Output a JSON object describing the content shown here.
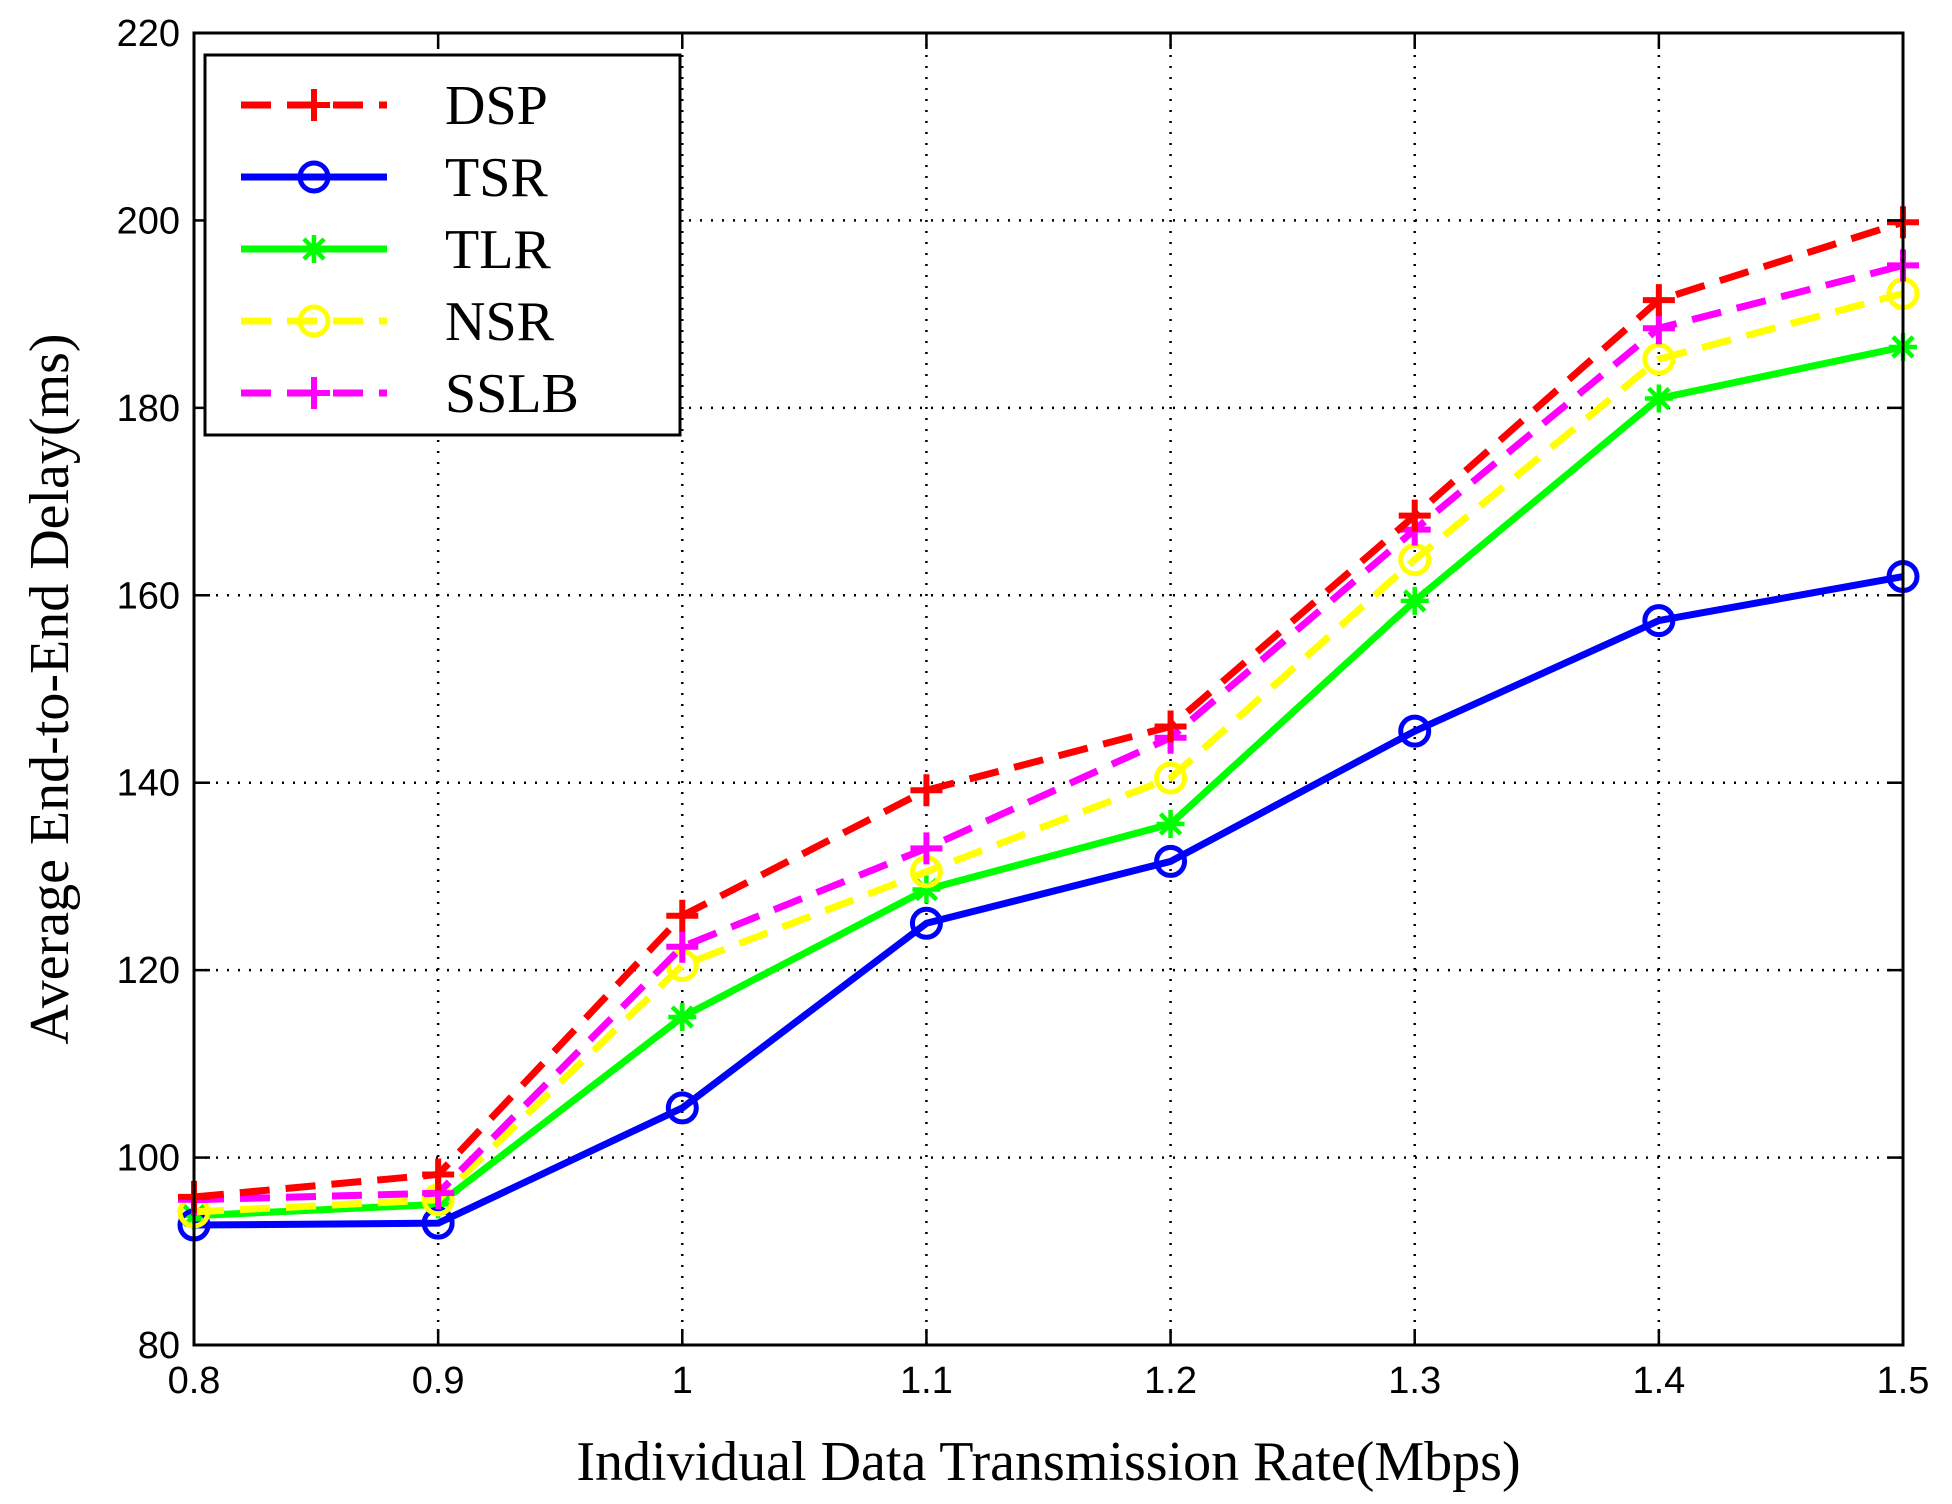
{
  "chart_data": {
    "type": "line",
    "title": "",
    "xlabel": "Individual Data Transmission Rate(Mbps)",
    "ylabel": "Average End-to-End Delay(ms)",
    "x": [
      0.8,
      0.9,
      1.0,
      1.1,
      1.2,
      1.3,
      1.4,
      1.5
    ],
    "xticks": [
      "0.8",
      "0.9",
      "1",
      "1.1",
      "1.2",
      "1.3",
      "1.4",
      "1.5"
    ],
    "yticks": [
      "80",
      "100",
      "120",
      "140",
      "160",
      "180",
      "200",
      "220"
    ],
    "xlim": [
      0.8,
      1.5
    ],
    "ylim": [
      80,
      220
    ],
    "grid": true,
    "legend_position": "top-left",
    "series": [
      {
        "name": "DSP",
        "color": "#ff0000",
        "dash": "dashed",
        "marker": "plus",
        "values": [
          95.8,
          98.2,
          125.8,
          139.2,
          146.0,
          168.5,
          191.5,
          199.8
        ]
      },
      {
        "name": "TSR",
        "color": "#0000ff",
        "dash": "solid",
        "marker": "circle",
        "values": [
          92.8,
          93.0,
          105.3,
          125.0,
          131.6,
          145.5,
          157.3,
          162.0
        ]
      },
      {
        "name": "TLR",
        "color": "#00ff00",
        "dash": "solid",
        "marker": "asterisk",
        "values": [
          93.8,
          95.0,
          115.0,
          128.6,
          135.6,
          159.4,
          181.0,
          186.5
        ]
      },
      {
        "name": "NSR",
        "color": "#ffff00",
        "dash": "dashed",
        "marker": "circle",
        "values": [
          94.2,
          95.5,
          120.5,
          130.5,
          140.5,
          163.8,
          185.2,
          192.2
        ]
      },
      {
        "name": "SSLB",
        "color": "#ff00ff",
        "dash": "dashed",
        "marker": "plus",
        "values": [
          95.5,
          96.2,
          122.5,
          133.0,
          144.8,
          167.0,
          188.5,
          195.2
        ]
      }
    ]
  }
}
